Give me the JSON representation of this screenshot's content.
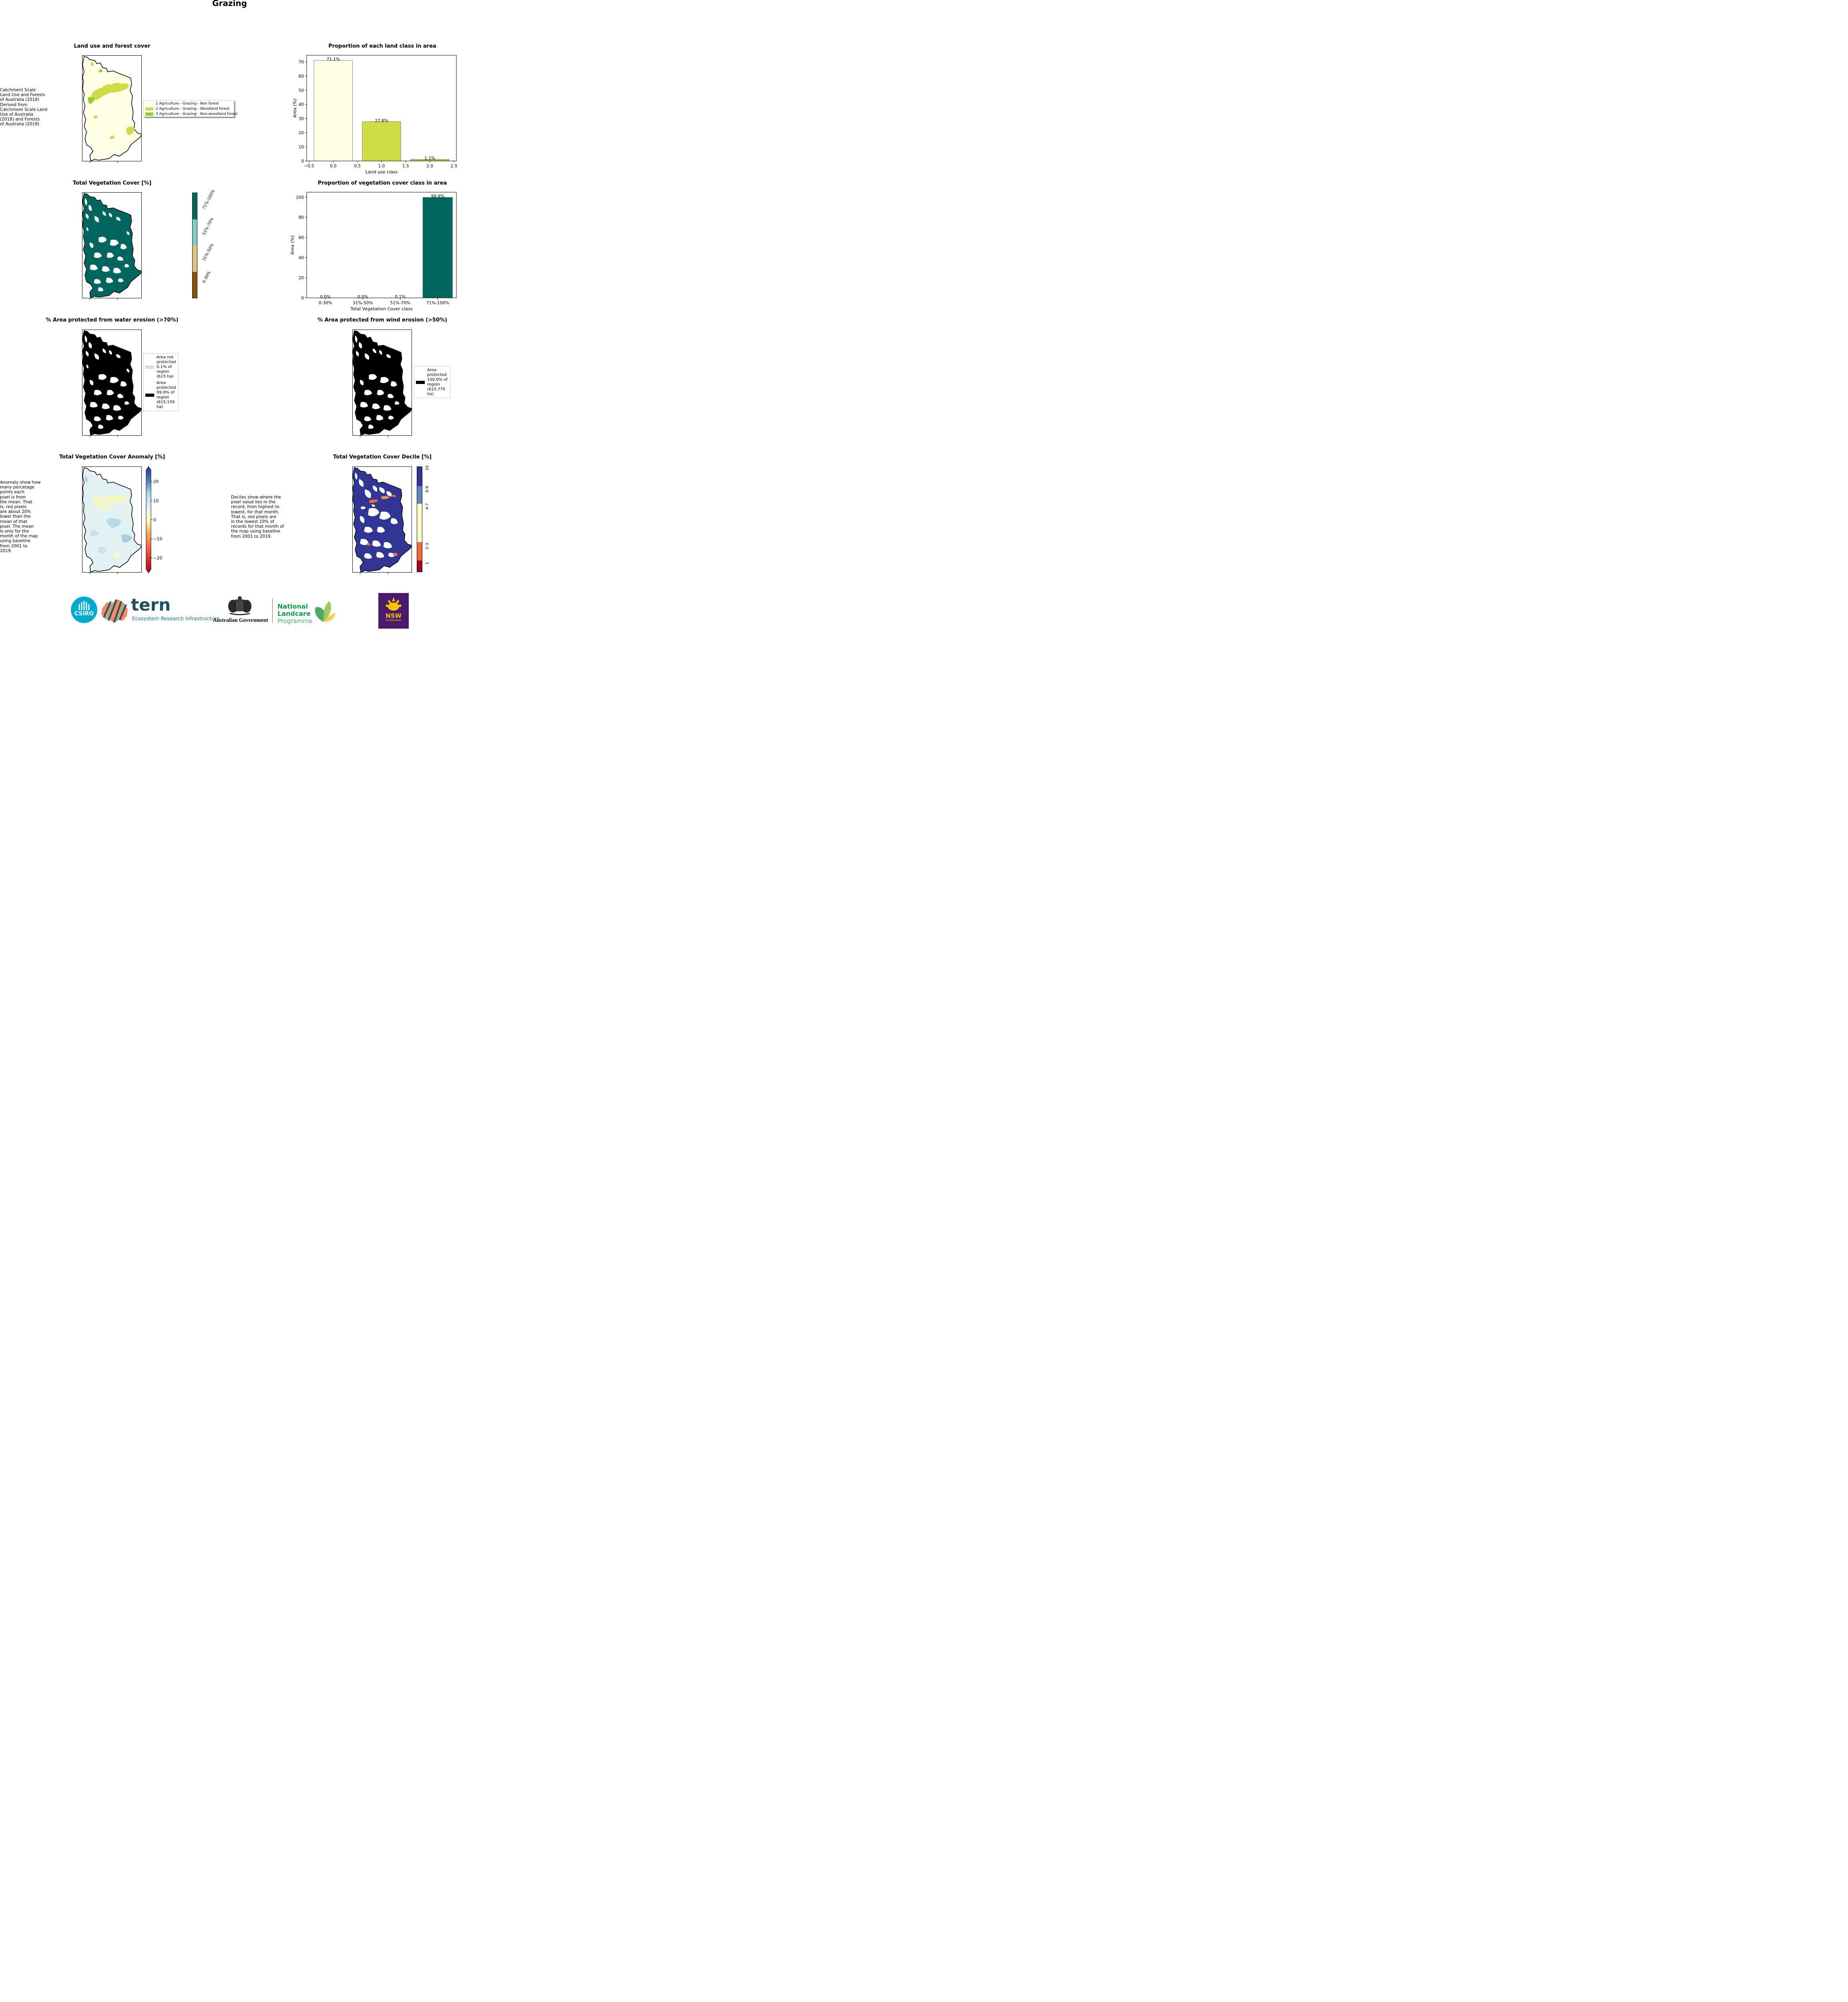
{
  "page": {
    "title": "Grazing"
  },
  "panels": {
    "landuse_map": {
      "title": "Land use and forest cover",
      "note": " Catchment Scale\nLand Use and Forests\nof Australia (2018)\nDerived from\nCatchment Scale Land\nUse of Australia\n(2018) and Forests\nof Australia (2018)",
      "legend": [
        {
          "label": "1 Agriculture - Grazing - Non forest",
          "color": "#ffffe6"
        },
        {
          "label": "2 Agriculture - Grazing - Woodland forest",
          "color": "#cfdc45"
        },
        {
          "label": "3 Agriculture - Grazing - Non-woodland forest",
          "color": "#94cf2a"
        }
      ]
    },
    "veg_cover_map": {
      "title": "Total Vegetation Cover [%]",
      "colorbar": [
        {
          "label": "0-30%",
          "color": "#8c5109"
        },
        {
          "label": "31%-50%",
          "color": "#dfc27d"
        },
        {
          "label": "51%-70%",
          "color": "#80cdc1"
        },
        {
          "label": "71%-100%",
          "color": "#01665e"
        }
      ]
    },
    "water_erosion_map": {
      "title": "% Area protected from water erosion (>70%)",
      "legend": [
        {
          "label": "Area not protected 0.1% of region (615 ha)",
          "lines": [
            "Area not",
            "protected",
            "0.1% of",
            "region",
            "(615 ha)"
          ],
          "color": "#d9d9d9"
        },
        {
          "label": "Area protected 99.9% of region (615,159 ha)",
          "lines": [
            "Area",
            "protected",
            "99.9% of",
            "region",
            "(615,159",
            "ha)"
          ],
          "color": "#000000"
        }
      ]
    },
    "wind_erosion_map": {
      "title": "% Area protected from wind erosion (>50%)",
      "legend": [
        {
          "label": "Area protected 100.0% of region (615,775 ha)",
          "lines": [
            "Area",
            "protected",
            "100.0% of",
            "region",
            "(615,775",
            "ha)"
          ],
          "color": "#000000"
        }
      ]
    },
    "anomaly_map": {
      "title": "Total Vegetation Cover Anomaly [%]",
      "note": "Anomaly show how\nmany percetage\npoints each\npixel is from\nthe mean. That\nis, red pixels\nare about 20%\nlower than the\nmean of that\npixel. The mean\nis only for the\nmonth of the map\nusing baseline\nfrom 2001 to\n2019.",
      "colorbar_ticks": [
        "20",
        "10",
        "0",
        "−10",
        "−20"
      ],
      "colorbar_range": [
        -26,
        26
      ]
    },
    "decile_map": {
      "title": "Total Vegetation Cover Decile [%]",
      "note": "Deciles show where the\npixel value lies in the\nrecord, from highest to\nlowest, for that month.\nThat is, red pixels are\nin the lowest 10% of\nrecords for that month of\nthe map using baseline\nfrom 2001 to 2019.",
      "colorbar": [
        {
          "label": "1",
          "color": "#a50026"
        },
        {
          "label": "2-3",
          "color": "#ec6a43"
        },
        {
          "label": "4-7",
          "color": "#ffffbf"
        },
        {
          "label": "8-9",
          "color": "#5f83c0"
        },
        {
          "label": "10",
          "color": "#313695"
        }
      ]
    }
  },
  "chart_data": [
    {
      "type": "bar",
      "title": "Proportion of each land class in area",
      "xlabel": "Land use class",
      "ylabel": "Area (%)",
      "x": [
        0,
        1,
        2
      ],
      "values": [
        71.1,
        27.8,
        1.1
      ],
      "data_labels": [
        "71.1%",
        "27.8%",
        "1.1%"
      ],
      "colors": [
        "#ffffe6",
        "#cfdc45",
        "#94cf2a"
      ],
      "xlim": [
        -0.55,
        2.55
      ],
      "ylim": [
        0,
        74.7
      ],
      "xticks": [
        "−0.5",
        "0.0",
        "0.5",
        "1.0",
        "1.5",
        "2.0",
        "2.5"
      ],
      "yticks": [
        "0",
        "10",
        "20",
        "30",
        "40",
        "50",
        "60",
        "70"
      ]
    },
    {
      "type": "bar",
      "title": "Proportion of vegetation cover class in area",
      "xlabel": "Total Vegetation Cover class",
      "ylabel": "Area (%)",
      "categories": [
        "0-30%",
        "31%-50%",
        "51%-70%",
        "71%-100%"
      ],
      "values": [
        0.0,
        0.0,
        0.1,
        99.9
      ],
      "data_labels": [
        "0.0%",
        "0.0%",
        "0.1%",
        "99.9%"
      ],
      "colors": [
        "#8c5109",
        "#dfc27d",
        "#80cdc1",
        "#01665e"
      ],
      "ylim": [
        0,
        104.9
      ],
      "yticks": [
        "0",
        "20",
        "40",
        "60",
        "80",
        "100"
      ]
    }
  ],
  "logos": {
    "csiro": "CSIRO",
    "tern": "tern",
    "tern_sub": "Ecosystem Research Infrastructure",
    "gov": "Australian Government",
    "nlp_1": "National",
    "nlp_2": "Landcare",
    "nlp_3": "Programme",
    "nsw": "NSW",
    "nsw_sub": "GOVERNMENT"
  }
}
